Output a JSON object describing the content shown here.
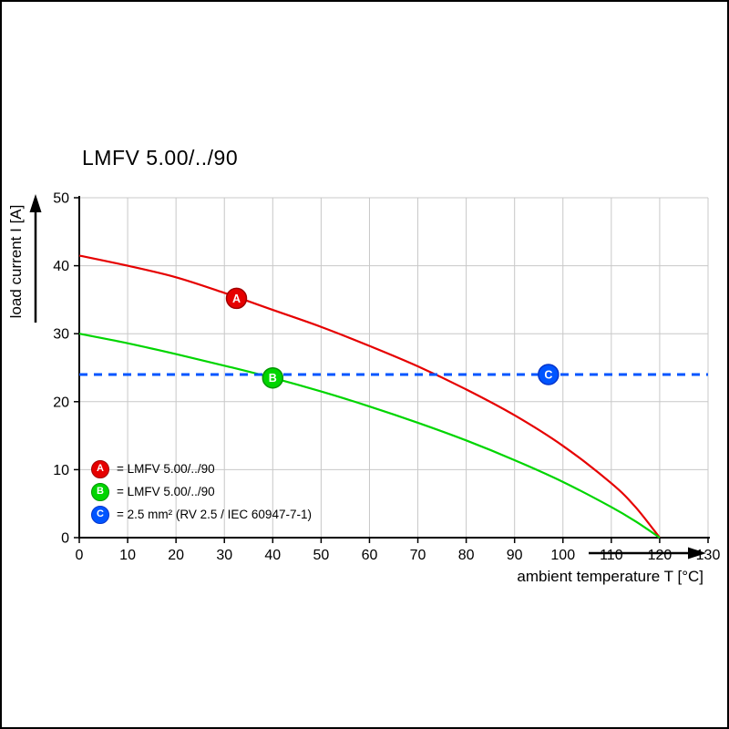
{
  "page": {
    "background": "#ffffff",
    "frame_color": "#000000"
  },
  "chart_data": {
    "type": "line",
    "title": "LMFV 5.00/../90",
    "xlabel": "ambient temperature T [°C]",
    "ylabel": "load current I [A]",
    "xlim": [
      0,
      130
    ],
    "ylim": [
      0,
      50
    ],
    "x_ticks": [
      0,
      10,
      20,
      30,
      40,
      50,
      60,
      70,
      80,
      90,
      100,
      110,
      120,
      130
    ],
    "y_ticks": [
      0,
      10,
      20,
      30,
      40,
      50
    ],
    "grid": true,
    "grid_color": "#c8c8c8",
    "axis_color": "#000000",
    "series": [
      {
        "name": "A",
        "legend_label": "= LMFV 5.00/../90",
        "color": "#e60000",
        "marker_stroke": "#a00000",
        "style": "solid",
        "points": [
          [
            0,
            41.5
          ],
          [
            10,
            40.0
          ],
          [
            20,
            38.3
          ],
          [
            30,
            36.0
          ],
          [
            40,
            33.5
          ],
          [
            50,
            31.0
          ],
          [
            60,
            28.2
          ],
          [
            70,
            25.2
          ],
          [
            80,
            21.8
          ],
          [
            90,
            18.0
          ],
          [
            100,
            13.5
          ],
          [
            110,
            8.0
          ],
          [
            115,
            4.5
          ],
          [
            120,
            0
          ]
        ],
        "marker": {
          "x": 32.5,
          "y": 35.2,
          "letter": "A"
        }
      },
      {
        "name": "B",
        "legend_label": "= LMFV 5.00/../90",
        "color": "#00d500",
        "marker_stroke": "#009600",
        "style": "solid",
        "points": [
          [
            0,
            30
          ],
          [
            10,
            28.6
          ],
          [
            20,
            27.0
          ],
          [
            30,
            25.3
          ],
          [
            40,
            23.5
          ],
          [
            50,
            21.5
          ],
          [
            60,
            19.3
          ],
          [
            70,
            16.9
          ],
          [
            80,
            14.3
          ],
          [
            90,
            11.4
          ],
          [
            100,
            8.2
          ],
          [
            110,
            4.5
          ],
          [
            115,
            2.4
          ],
          [
            120,
            0
          ]
        ],
        "marker": {
          "x": 40,
          "y": 23.5,
          "letter": "B"
        }
      },
      {
        "name": "C",
        "legend_label": "= 2.5 mm² (RV 2.5 / IEC 60947-7-1)",
        "color": "#0055ff",
        "marker_stroke": "#0033cc",
        "style": "dashed",
        "points": [
          [
            0,
            24
          ],
          [
            130,
            24
          ]
        ],
        "marker": {
          "x": 97,
          "y": 24,
          "letter": "C"
        }
      }
    ]
  }
}
